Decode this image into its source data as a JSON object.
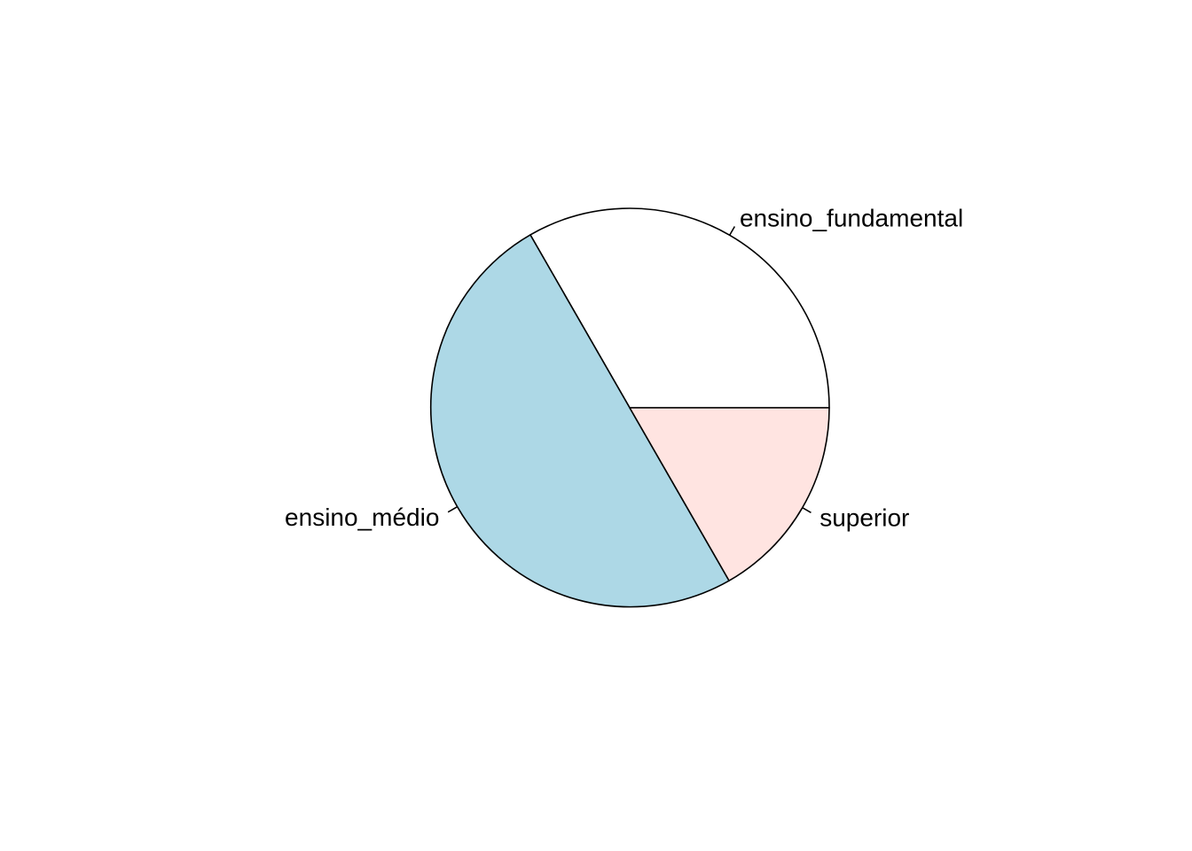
{
  "chart_data": {
    "type": "pie",
    "categories": [
      "ensino_fundamental",
      "ensino_médio",
      "superior"
    ],
    "values": [
      33.3,
      50.0,
      16.7
    ],
    "colors": [
      "#ffffff",
      "#add8e6",
      "#ffe4e1"
    ],
    "start_angle_deg": 0,
    "direction": "counterclockwise",
    "outline_color": "#000000",
    "title": "",
    "legend": "none",
    "grid": false
  }
}
